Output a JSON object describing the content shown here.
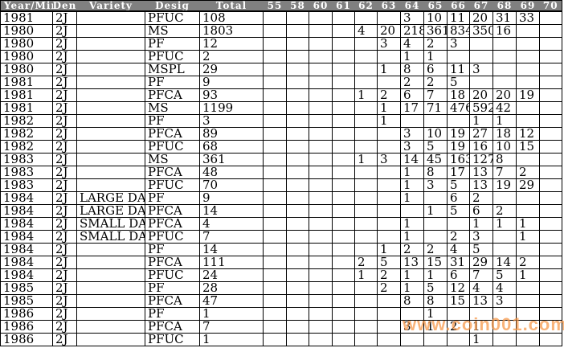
{
  "colors": {
    "header_bg": "#808080",
    "header_text": "#FFFFFF",
    "grid": "#000000",
    "watermark": "#F79646"
  },
  "watermark": {
    "text": "www.coin001.com"
  },
  "table": {
    "columns": [
      "Year/Mint",
      "Den",
      "Variety",
      "Desig",
      "Total",
      "55",
      "58",
      "60",
      "61",
      "62",
      "63",
      "64",
      "65",
      "66",
      "67",
      "68",
      "69",
      "70"
    ],
    "column_keys": [
      "year-mint",
      "den",
      "variety",
      "desig",
      "total",
      "55",
      "58",
      "60",
      "61",
      "62",
      "63",
      "64",
      "65",
      "66",
      "67",
      "68",
      "69",
      "70"
    ],
    "rows": [
      [
        "1981",
        "2J",
        "",
        "PFUC",
        "108",
        "",
        "",
        "",
        "",
        "",
        "",
        "3",
        "10",
        "11",
        "20",
        "31",
        "33",
        ""
      ],
      [
        "1980",
        "2J",
        "",
        "MS",
        "1803",
        "",
        "",
        "",
        "",
        "4",
        "20",
        "218",
        "361",
        "834",
        "350",
        "16",
        "",
        ""
      ],
      [
        "1980",
        "2J",
        "",
        "PF",
        "12",
        "",
        "",
        "",
        "",
        "",
        "3",
        "4",
        "2",
        "3",
        "",
        "",
        "",
        ""
      ],
      [
        "1980",
        "2J",
        "",
        "PFUC",
        "2",
        "",
        "",
        "",
        "",
        "",
        "",
        "1",
        "1",
        "",
        "",
        "",
        "",
        ""
      ],
      [
        "1980",
        "2J",
        "",
        "MSPL",
        "29",
        "",
        "",
        "",
        "",
        "",
        "1",
        "8",
        "6",
        "11",
        "3",
        "",
        "",
        ""
      ],
      [
        "1981",
        "2J",
        "",
        "PF",
        "9",
        "",
        "",
        "",
        "",
        "",
        "",
        "2",
        "2",
        "5",
        "",
        "",
        "",
        ""
      ],
      [
        "1981",
        "2J",
        "",
        "PFCA",
        "93",
        "",
        "",
        "",
        "",
        "1",
        "2",
        "6",
        "7",
        "18",
        "20",
        "20",
        "19",
        ""
      ],
      [
        "1981",
        "2J",
        "",
        "MS",
        "1199",
        "",
        "",
        "",
        "",
        "",
        "1",
        "17",
        "71",
        "476",
        "592",
        "42",
        "",
        ""
      ],
      [
        "1982",
        "2J",
        "",
        "PF",
        "3",
        "",
        "",
        "",
        "",
        "",
        "1",
        "",
        "",
        "",
        "1",
        "1",
        "",
        ""
      ],
      [
        "1982",
        "2J",
        "",
        "PFCA",
        "89",
        "",
        "",
        "",
        "",
        "",
        "",
        "3",
        "10",
        "19",
        "27",
        "18",
        "12",
        ""
      ],
      [
        "1982",
        "2J",
        "",
        "PFUC",
        "68",
        "",
        "",
        "",
        "",
        "",
        "",
        "3",
        "5",
        "19",
        "16",
        "10",
        "15",
        ""
      ],
      [
        "1983",
        "2J",
        "",
        "MS",
        "361",
        "",
        "",
        "",
        "",
        "1",
        "3",
        "14",
        "45",
        "163",
        "127",
        "8",
        "",
        ""
      ],
      [
        "1983",
        "2J",
        "",
        "PFCA",
        "48",
        "",
        "",
        "",
        "",
        "",
        "",
        "1",
        "8",
        "17",
        "13",
        "7",
        "2",
        ""
      ],
      [
        "1983",
        "2J",
        "",
        "PFUC",
        "70",
        "",
        "",
        "",
        "",
        "",
        "",
        "1",
        "3",
        "5",
        "13",
        "19",
        "29",
        ""
      ],
      [
        "1984",
        "2J",
        "LARGE DAT",
        "PF",
        "9",
        "",
        "",
        "",
        "",
        "",
        "",
        "1",
        "",
        "6",
        "2",
        "",
        "",
        ""
      ],
      [
        "1984",
        "2J",
        "LARGE DAT",
        "PFCA",
        "14",
        "",
        "",
        "",
        "",
        "",
        "",
        "",
        "1",
        "5",
        "6",
        "2",
        "",
        ""
      ],
      [
        "1984",
        "2J",
        "SMALL DAT",
        "PFCA",
        "4",
        "",
        "",
        "",
        "",
        "",
        "",
        "1",
        "",
        "",
        "1",
        "1",
        "1",
        ""
      ],
      [
        "1984",
        "2J",
        "SMALL DAT",
        "PFUC",
        "7",
        "",
        "",
        "",
        "",
        "",
        "",
        "1",
        "",
        "2",
        "3",
        "",
        "1",
        ""
      ],
      [
        "1984",
        "2J",
        "",
        "PF",
        "14",
        "",
        "",
        "",
        "",
        "",
        "1",
        "2",
        "2",
        "4",
        "5",
        "",
        "",
        ""
      ],
      [
        "1984",
        "2J",
        "",
        "PFCA",
        "111",
        "",
        "",
        "",
        "",
        "2",
        "5",
        "13",
        "15",
        "31",
        "29",
        "14",
        "2",
        ""
      ],
      [
        "1984",
        "2J",
        "",
        "PFUC",
        "24",
        "",
        "",
        "",
        "",
        "1",
        "2",
        "1",
        "1",
        "6",
        "7",
        "5",
        "1",
        ""
      ],
      [
        "1985",
        "2J",
        "",
        "PF",
        "28",
        "",
        "",
        "",
        "",
        "",
        "2",
        "1",
        "5",
        "12",
        "4",
        "4",
        "",
        ""
      ],
      [
        "1985",
        "2J",
        "",
        "PFCA",
        "47",
        "",
        "",
        "",
        "",
        "",
        "",
        "8",
        "8",
        "15",
        "13",
        "3",
        "",
        ""
      ],
      [
        "1986",
        "2J",
        "",
        "PF",
        "1",
        "",
        "",
        "",
        "",
        "",
        "",
        "",
        "1",
        "",
        "",
        "",
        "",
        ""
      ],
      [
        "1986",
        "2J",
        "",
        "PFCA",
        "7",
        "",
        "",
        "",
        "",
        "",
        "",
        "3",
        "1",
        "2",
        "1",
        "",
        "",
        ""
      ],
      [
        "1986",
        "2J",
        "",
        "PFUC",
        "1",
        "",
        "",
        "",
        "",
        "",
        "",
        "",
        "",
        "",
        "1",
        "",
        "",
        ""
      ]
    ]
  }
}
